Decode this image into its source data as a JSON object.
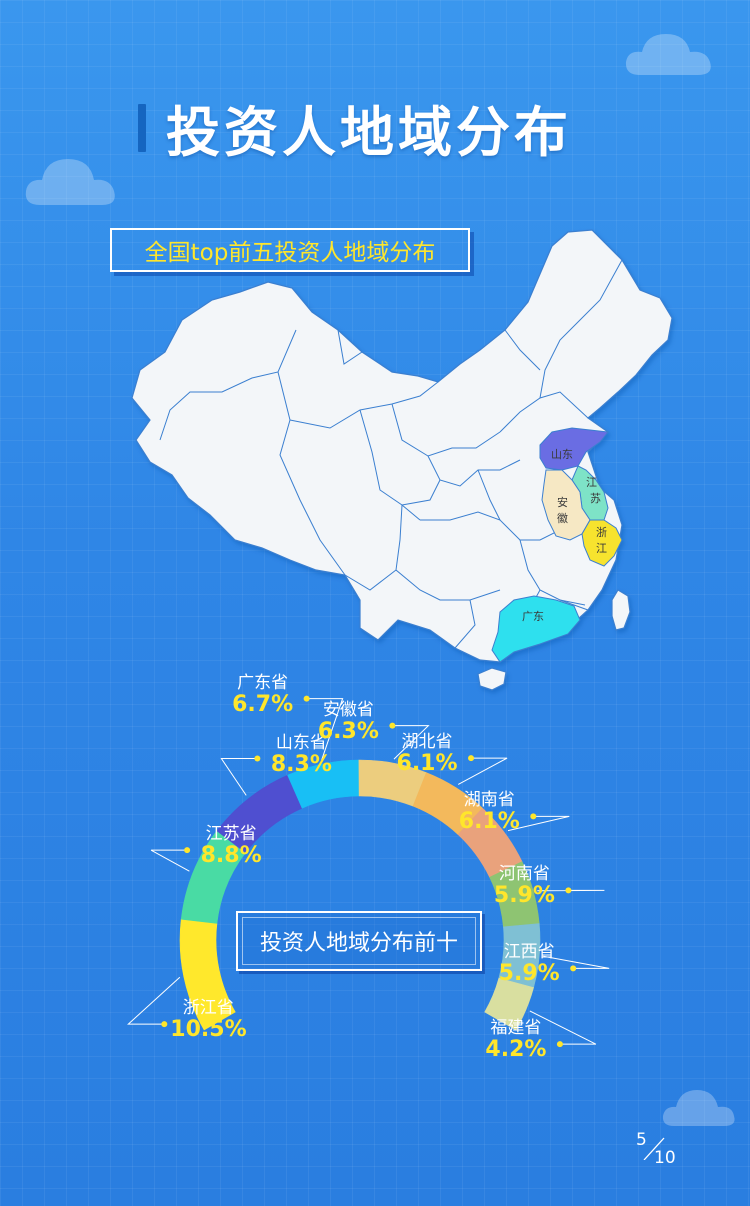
{
  "header": {
    "title": "投资人地域分布"
  },
  "map": {
    "subtitle": "全国top前五投资人地域分布",
    "highlighted": [
      {
        "name": "山东",
        "color": "#6a6de3"
      },
      {
        "name": "江苏",
        "color": "#7ee3c7"
      },
      {
        "name": "安徽",
        "color": "#f6e8c4"
      },
      {
        "name": "浙江",
        "color": "#f7e32f"
      },
      {
        "name": "广东",
        "color": "#2ee0ee"
      }
    ],
    "base_color": "#f3f6f9",
    "border_color": "#3a7fd0"
  },
  "chart_data": {
    "type": "pie",
    "title": "投资人地域分布前十",
    "categories": [
      "浙江省",
      "江苏省",
      "山东省",
      "广东省",
      "安徽省",
      "湖北省",
      "湖南省",
      "河南省",
      "江西省",
      "福建省"
    ],
    "values": [
      10.5,
      8.8,
      8.3,
      6.7,
      6.3,
      6.1,
      6.1,
      5.9,
      5.9,
      4.2
    ],
    "labels": [
      "10.5%",
      "8.8%",
      "8.3%",
      "6.7%",
      "6.3%",
      "6.1%",
      "6.1%",
      "5.9%",
      "5.9%",
      "4.2%"
    ],
    "colors": [
      "#ffe82c",
      "#49dba4",
      "#4f4fd0",
      "#18bff5",
      "#eccd7e",
      "#f3b95c",
      "#e9a27c",
      "#8ec472",
      "#7fc0d4",
      "#d9dfa0"
    ]
  },
  "footer": {
    "page_current": "5",
    "page_total": "10"
  }
}
